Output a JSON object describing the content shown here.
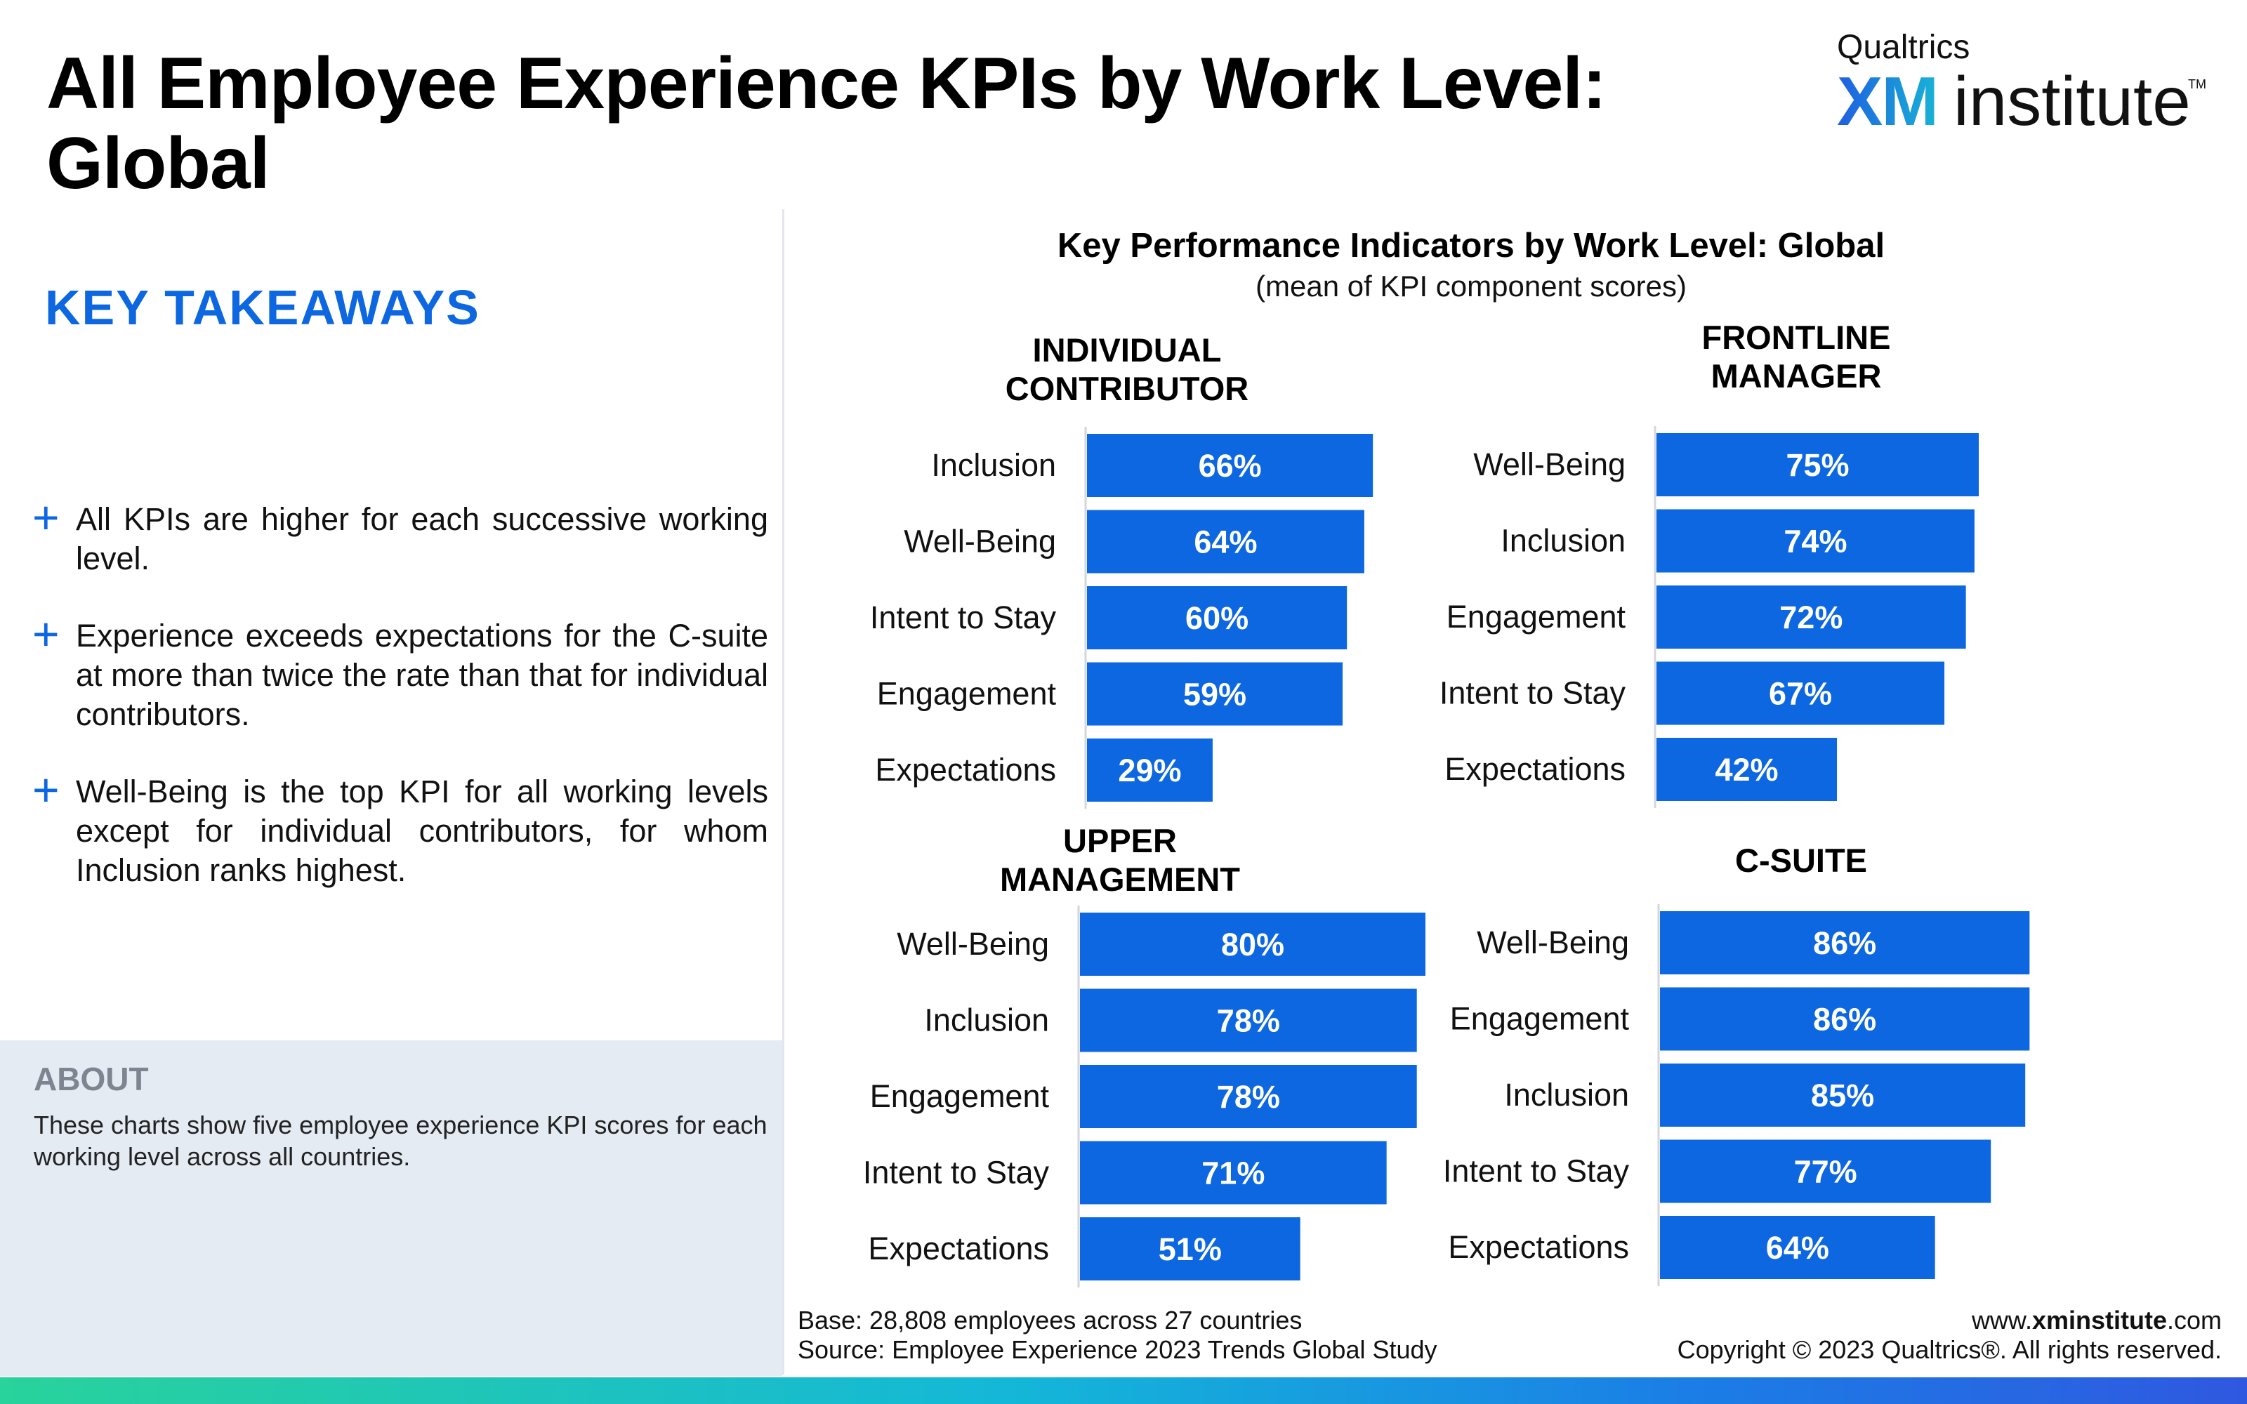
{
  "page": {
    "title": "All Employee Experience KPIs by Work Level: Global"
  },
  "logo": {
    "company": "Qualtrics",
    "brand_xm": "XM",
    "brand_rest": "institute",
    "trademark": "TM"
  },
  "takeaways": {
    "heading": "KEY TAKEAWAYS",
    "items": [
      "All KPIs are higher for each successive working level.",
      "Experience exceeds expectations for the C-suite at more than twice the rate than that for individual contributors.",
      "Well-Being is the top KPI for all working levels except for individual contributors, for whom Inclusion ranks highest."
    ]
  },
  "about": {
    "heading": "ABOUT",
    "text": "These charts show five employee experience KPI scores for each working level across all countries."
  },
  "chart": {
    "title": "Key Performance Indicators by Work Level: Global",
    "subtitle": "(mean of KPI component scores)"
  },
  "colors": {
    "bar": "#0c67e0",
    "accent": "#0c67e0"
  },
  "chart_data": [
    {
      "type": "bar",
      "orientation": "horizontal",
      "title": "INDIVIDUAL CONTRIBUTOR",
      "categories": [
        "Inclusion",
        "Well-Being",
        "Intent to Stay",
        "Engagement",
        "Expectations"
      ],
      "values": [
        66,
        64,
        60,
        59,
        29
      ],
      "unit": "%"
    },
    {
      "type": "bar",
      "orientation": "horizontal",
      "title": "FRONTLINE MANAGER",
      "categories": [
        "Well-Being",
        "Inclusion",
        "Engagement",
        "Intent to Stay",
        "Expectations"
      ],
      "values": [
        75,
        74,
        72,
        67,
        42
      ],
      "unit": "%"
    },
    {
      "type": "bar",
      "orientation": "horizontal",
      "title": "UPPER MANAGEMENT",
      "categories": [
        "Well-Being",
        "Inclusion",
        "Engagement",
        "Intent to Stay",
        "Expectations"
      ],
      "values": [
        80,
        78,
        78,
        71,
        51
      ],
      "unit": "%"
    },
    {
      "type": "bar",
      "orientation": "horizontal",
      "title": "C-SUITE",
      "categories": [
        "Well-Being",
        "Engagement",
        "Inclusion",
        "Intent to Stay",
        "Expectations"
      ],
      "values": [
        86,
        86,
        85,
        77,
        64
      ],
      "unit": "%"
    }
  ],
  "footer": {
    "base": "Base: 28,808 employees across 27 countries",
    "source": "Source: Employee Experience 2023 Trends Global Study",
    "site_prefix": "www.",
    "site_bold": "xminstitute",
    "site_suffix": ".com",
    "copyright": "Copyright © 2023 Qualtrics®. All rights reserved."
  }
}
